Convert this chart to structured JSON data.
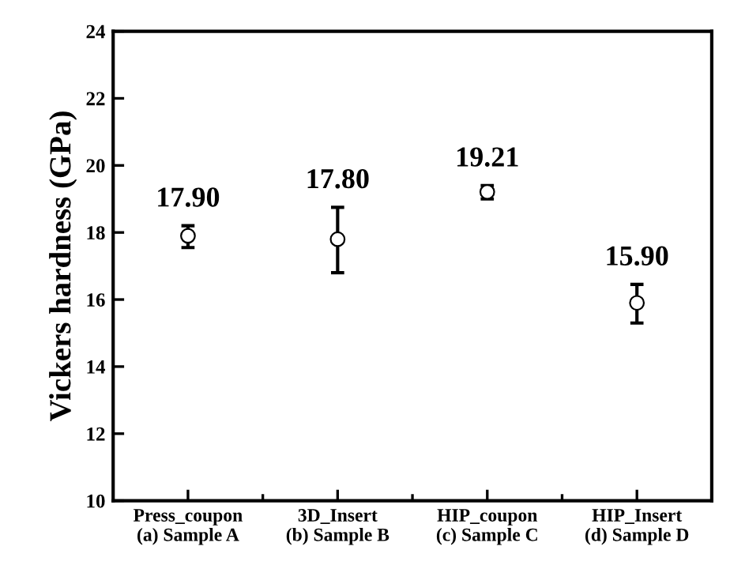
{
  "chart_data": {
    "type": "scatter",
    "categories": [
      "Press_coupon\n(a) Sample A",
      "3D_Insert\n(b) Sample B",
      "HIP_coupon\n(c) Sample C",
      "HIP_Insert\n(d) Sample D"
    ],
    "values": [
      17.9,
      17.8,
      19.21,
      15.9
    ],
    "value_labels": [
      "17.90",
      "17.80",
      "19.21",
      "15.90"
    ],
    "errors": [
      [
        17.55,
        18.2
      ],
      [
        16.8,
        18.75
      ],
      [
        19.0,
        19.4
      ],
      [
        15.3,
        16.45
      ]
    ],
    "color": "#000000",
    "marker": "circle",
    "ylabel": "Vickers hardness (GPa)",
    "ylim": [
      10,
      24
    ],
    "yticks": [
      10,
      12,
      14,
      16,
      18,
      20,
      22,
      24
    ],
    "grid": false,
    "legend": false
  }
}
